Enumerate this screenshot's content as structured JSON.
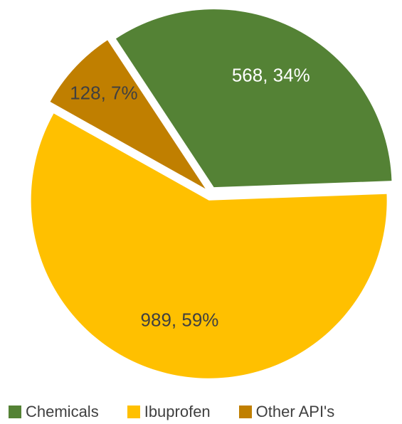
{
  "chart_data": {
    "type": "pie",
    "title": "",
    "exploded": true,
    "legend_position": "bottom",
    "slices": [
      {
        "name": "Chemicals",
        "value": 568,
        "percent": "34%",
        "label": "568, 34%",
        "color": "#548235",
        "label_color": "#ffffff"
      },
      {
        "name": "Ibuprofen",
        "value": 989,
        "percent": "59%",
        "label": "989, 59%",
        "color": "#FFC000",
        "label_color": "#404040"
      },
      {
        "name": "Other API's",
        "value": 128,
        "percent": "7%",
        "label": "128, 7%",
        "color": "#C07F00",
        "label_color": "#404040"
      }
    ]
  }
}
